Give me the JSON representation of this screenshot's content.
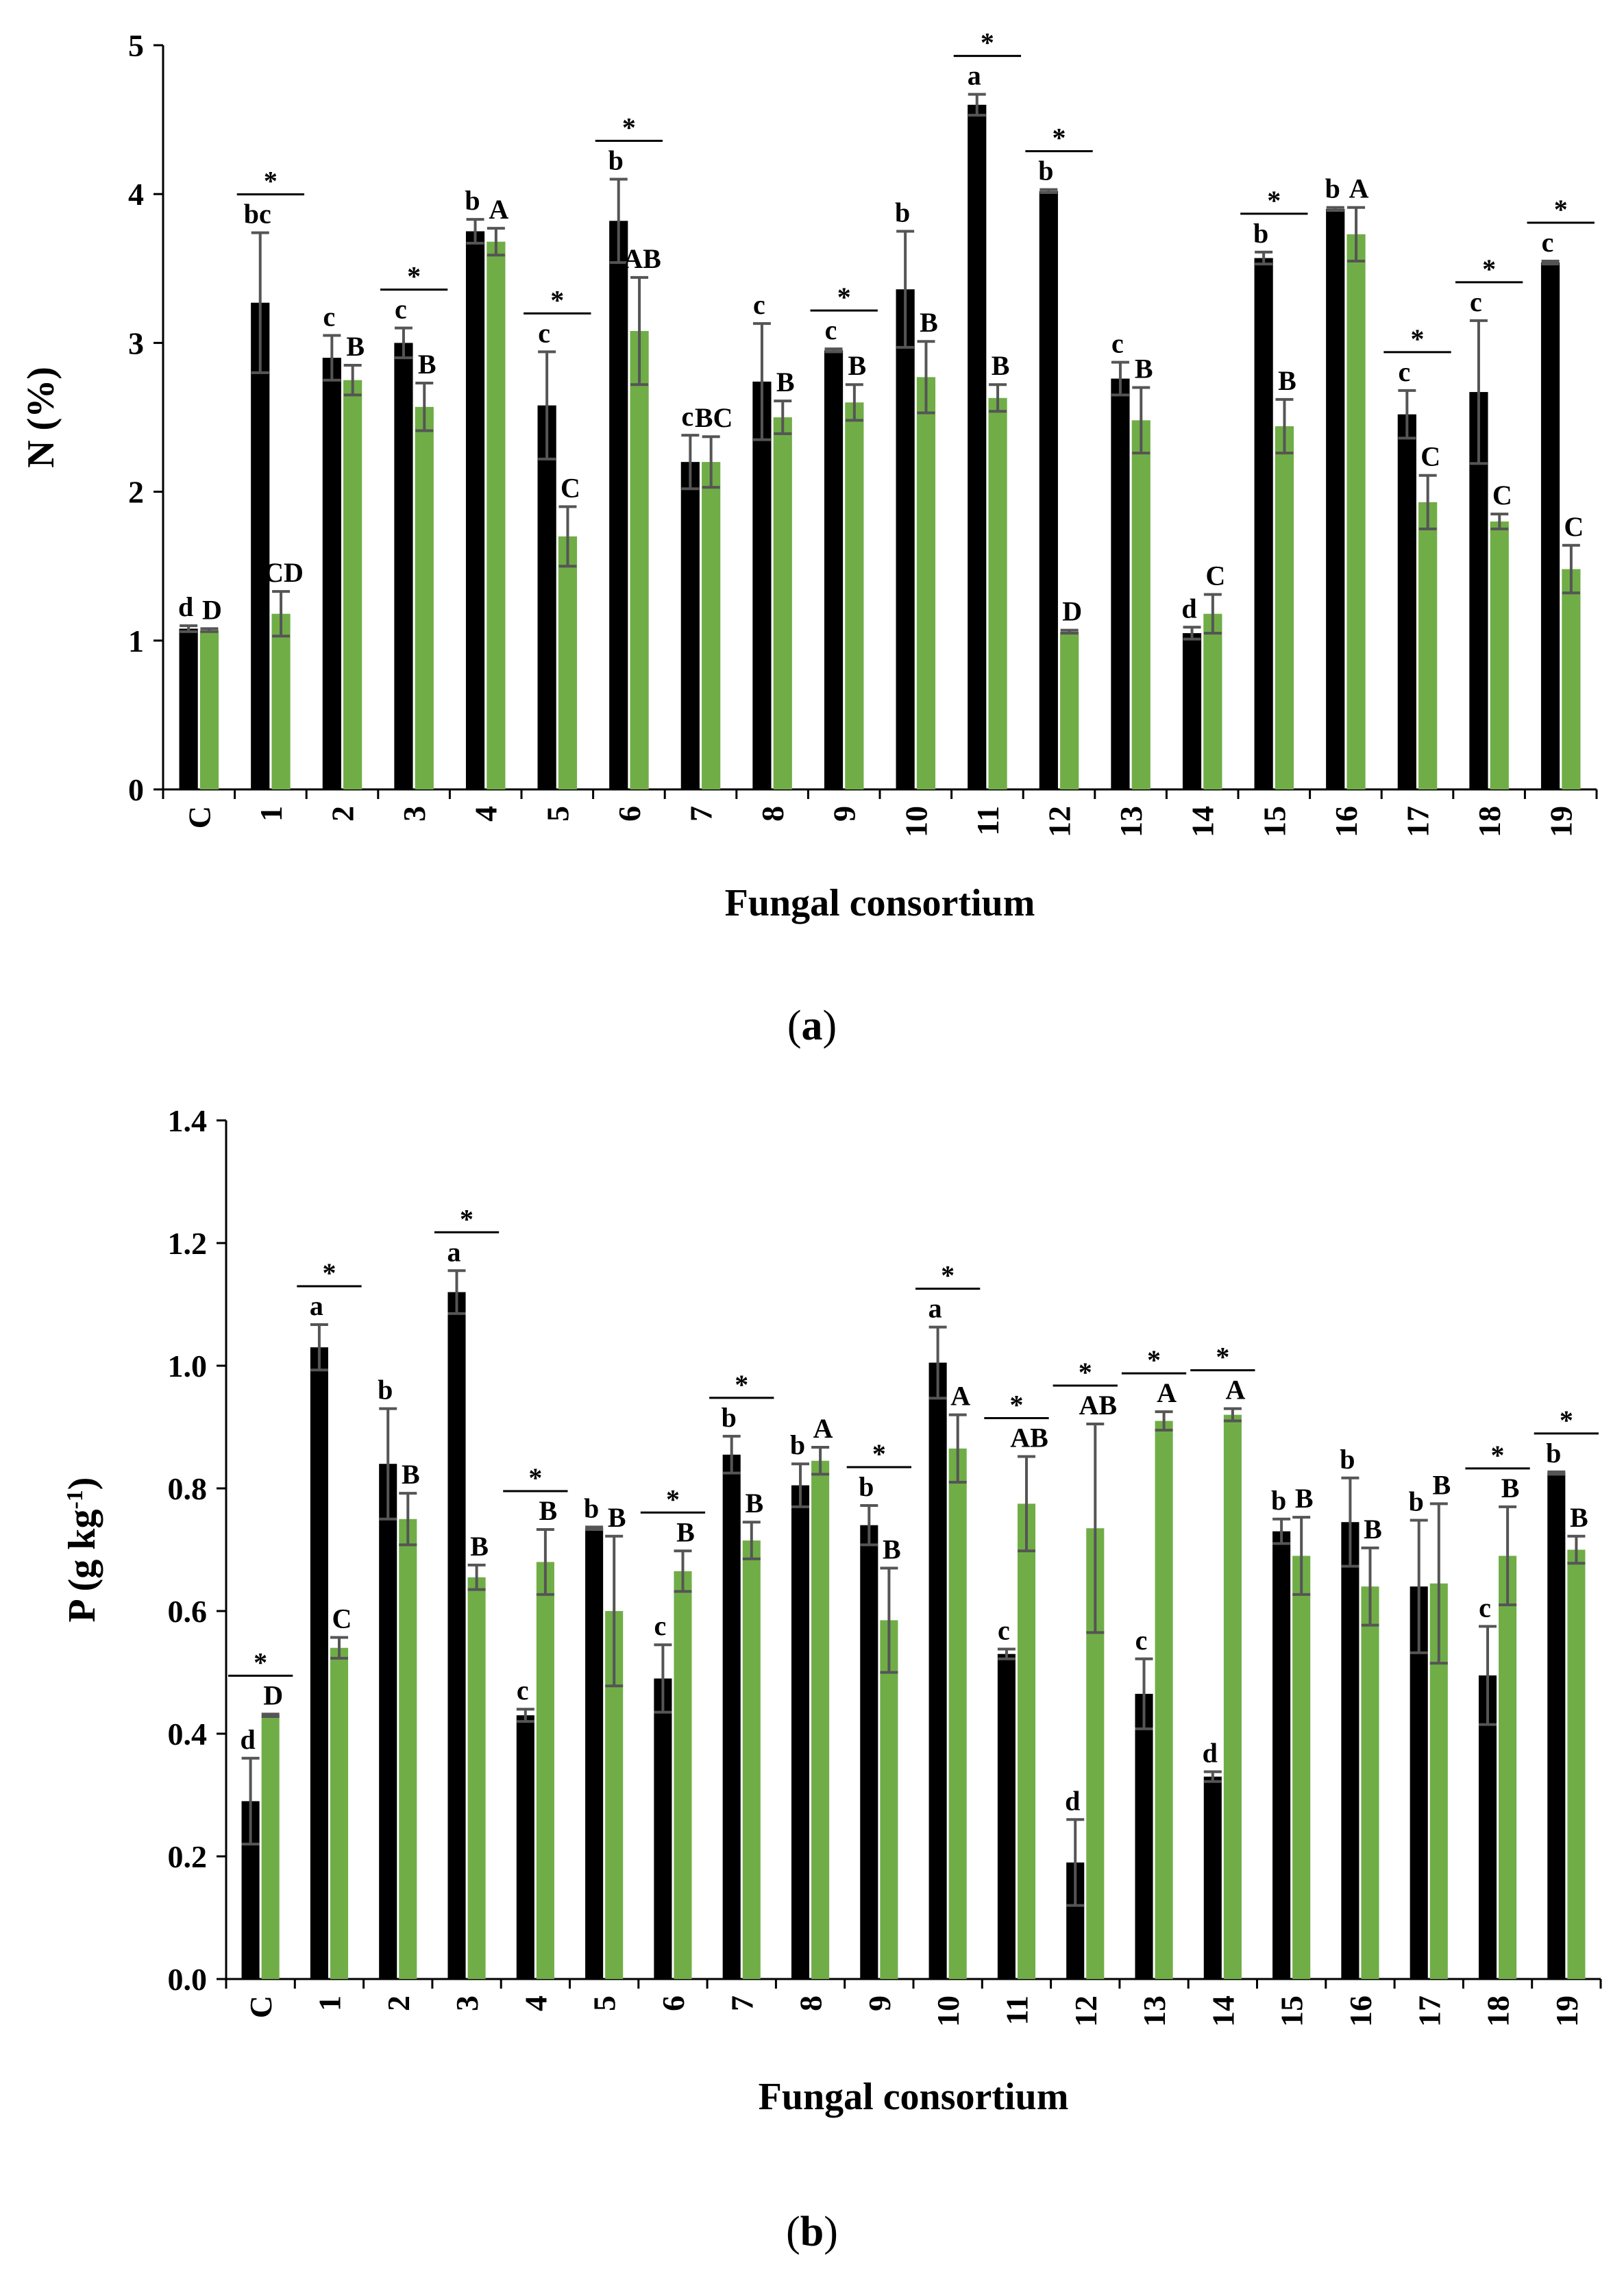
{
  "colors": {
    "series1": "#000000",
    "series2": "#70ad47",
    "errorbar": "#555555"
  },
  "chart_data": [
    {
      "type": "bar",
      "panel_label": "a",
      "ylabel": "N (%)",
      "xlabel": "Fungal consortium",
      "ylim": [
        0,
        5
      ],
      "yticks": [
        "0",
        "1",
        "2",
        "3",
        "4",
        "5"
      ],
      "categories": [
        "C",
        "1",
        "2",
        "3",
        "4",
        "5",
        "6",
        "7",
        "8",
        "9",
        "10",
        "11",
        "12",
        "13",
        "14",
        "15",
        "16",
        "17",
        "18",
        "19"
      ],
      "series": [
        {
          "values": [
            1.08,
            3.27,
            2.9,
            3.0,
            3.75,
            2.58,
            3.82,
            2.2,
            2.74,
            2.95,
            3.36,
            4.6,
            4.02,
            2.76,
            1.05,
            3.57,
            3.9,
            2.52,
            2.67,
            3.54
          ],
          "errors": [
            0.02,
            0.47,
            0.15,
            0.1,
            0.08,
            0.36,
            0.28,
            0.18,
            0.39,
            0.01,
            0.39,
            0.07,
            0.01,
            0.11,
            0.04,
            0.04,
            0.01,
            0.16,
            0.48,
            0.01
          ],
          "labels": [
            "d",
            "bc",
            "c",
            "c",
            "b",
            "c",
            "b",
            "c",
            "c",
            "c",
            "b",
            "a",
            "b",
            "c",
            "d",
            "b",
            "b",
            "c",
            "c",
            "c"
          ]
        },
        {
          "values": [
            1.07,
            1.18,
            2.75,
            2.57,
            3.68,
            1.7,
            3.08,
            2.2,
            2.5,
            2.6,
            2.77,
            2.63,
            1.06,
            2.48,
            1.18,
            2.44,
            3.73,
            1.93,
            1.8,
            1.48
          ],
          "errors": [
            0.01,
            0.15,
            0.1,
            0.16,
            0.09,
            0.2,
            0.36,
            0.17,
            0.11,
            0.12,
            0.24,
            0.09,
            0.01,
            0.22,
            0.13,
            0.18,
            0.18,
            0.18,
            0.05,
            0.16
          ],
          "labels": [
            "D",
            "CD",
            "B",
            "B",
            "A",
            "C",
            "AB",
            "BC",
            "B",
            "B",
            "B",
            "B",
            "D",
            "B",
            "C",
            "B",
            "A",
            "C",
            "C",
            "C"
          ]
        }
      ],
      "significance": [
        false,
        true,
        false,
        true,
        false,
        true,
        true,
        false,
        false,
        true,
        false,
        true,
        true,
        false,
        false,
        true,
        false,
        true,
        true,
        true
      ],
      "significance_mark": "*"
    },
    {
      "type": "bar",
      "panel_label": "b",
      "ylabel": "P (g kg",
      "ylabel_sup": "-1",
      "ylabel_end": ")",
      "xlabel": "Fungal consortium",
      "ylim": [
        0,
        1.4
      ],
      "yticks": [
        "0.0",
        "0.2",
        "0.4",
        "0.6",
        "0.8",
        "1.0",
        "1.2",
        "1.4"
      ],
      "categories": [
        "C",
        "1",
        "2",
        "3",
        "4",
        "5",
        "6",
        "7",
        "8",
        "9",
        "10",
        "11",
        "12",
        "13",
        "14",
        "15",
        "16",
        "17",
        "18",
        "19"
      ],
      "series": [
        {
          "values": [
            0.29,
            1.03,
            0.84,
            1.12,
            0.43,
            0.735,
            0.49,
            0.855,
            0.805,
            0.74,
            1.005,
            0.53,
            0.19,
            0.465,
            0.33,
            0.73,
            0.745,
            0.64,
            0.495,
            0.825
          ],
          "errors": [
            0.07,
            0.037,
            0.09,
            0.035,
            0.01,
            0.002,
            0.055,
            0.03,
            0.035,
            0.032,
            0.058,
            0.008,
            0.07,
            0.057,
            0.008,
            0.02,
            0.072,
            0.108,
            0.08,
            0.002
          ],
          "labels": [
            "d",
            "a",
            "b",
            "a",
            "c",
            "b",
            "c",
            "b",
            "b",
            "b",
            "a",
            "c",
            "d",
            "c",
            "d",
            "b",
            "b",
            "b",
            "c",
            "b"
          ]
        },
        {
          "values": [
            0.43,
            0.54,
            0.75,
            0.655,
            0.68,
            0.6,
            0.665,
            0.715,
            0.845,
            0.585,
            0.865,
            0.775,
            0.735,
            0.91,
            0.92,
            0.69,
            0.64,
            0.645,
            0.69,
            0.7
          ],
          "errors": [
            0.002,
            0.017,
            0.042,
            0.02,
            0.053,
            0.122,
            0.033,
            0.03,
            0.022,
            0.085,
            0.055,
            0.077,
            0.17,
            0.015,
            0.01,
            0.063,
            0.063,
            0.13,
            0.08,
            0.022
          ],
          "labels": [
            "D",
            "C",
            "B",
            "B",
            "B",
            "B",
            "B",
            "B",
            "A",
            "B",
            "A",
            "AB",
            "AB",
            "A",
            "A",
            "B",
            "B",
            "B",
            "B",
            "B"
          ]
        }
      ],
      "significance": [
        true,
        true,
        false,
        true,
        true,
        false,
        true,
        true,
        false,
        true,
        true,
        true,
        true,
        true,
        true,
        false,
        false,
        false,
        true,
        true
      ],
      "significance_mark": "*"
    }
  ]
}
